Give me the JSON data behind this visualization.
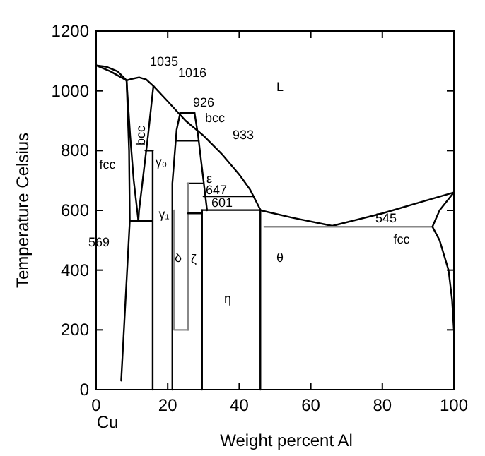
{
  "chart_data": {
    "type": "line",
    "xlabel": "Weight percent Al",
    "ylabel": "Temperature Celsius",
    "xlim": [
      0,
      100
    ],
    "ylim": [
      0,
      1200
    ],
    "xticks": [
      0,
      20,
      40,
      60,
      80,
      100
    ],
    "yticks": [
      0,
      200,
      400,
      600,
      800,
      1000,
      1200
    ],
    "grid": false,
    "line_style": "solid",
    "series": [
      {
        "color": "#000000",
        "x": [
          0,
          3,
          6,
          8.5,
          10,
          12,
          14,
          16,
          20,
          25,
          30,
          35,
          40,
          43,
          46,
          55,
          66,
          80,
          90,
          100
        ],
        "values": [
          1085,
          1080,
          1065,
          1035,
          1040,
          1045,
          1038,
          1016,
          965,
          900,
          850,
          790,
          720,
          670,
          600,
          575,
          548,
          590,
          625,
          660
        ]
      },
      {
        "color": "#000000",
        "x": [
          0,
          4,
          8.5
        ],
        "values": [
          1085,
          1065,
          1035
        ]
      },
      {
        "color": "#000000",
        "x": [
          8.5,
          9.2,
          9.4,
          7
        ],
        "values": [
          1035,
          800,
          565,
          30
        ]
      },
      {
        "color": "#000000",
        "x": [
          8.5,
          9.5,
          10.5,
          11.8
        ],
        "values": [
          1035,
          850,
          700,
          565
        ]
      },
      {
        "color": "#000000",
        "x": [
          16,
          14.5,
          13,
          12,
          11.8
        ],
        "values": [
          1016,
          850,
          700,
          600,
          565
        ]
      },
      {
        "color": "#000000",
        "x": [
          9.4,
          15.6
        ],
        "values": [
          565,
          565
        ]
      },
      {
        "color": "#000000",
        "x": [
          15.8,
          15.8
        ],
        "values": [
          0,
          800
        ]
      },
      {
        "color": "#000000",
        "x": [
          13.8,
          15.8
        ],
        "values": [
          800,
          800
        ]
      },
      {
        "color": "#000000",
        "x": [
          21.3,
          21.3,
          22.5,
          23.5
        ],
        "values": [
          0,
          690,
          870,
          926
        ]
      },
      {
        "color": "#000000",
        "x": [
          23.5,
          27.5
        ],
        "values": [
          926,
          926
        ]
      },
      {
        "color": "#000000",
        "x": [
          27.5,
          28.5,
          30,
          31
        ],
        "values": [
          926,
          850,
          700,
          600
        ]
      },
      {
        "color": "#000000",
        "x": [
          22.3,
          28.6
        ],
        "values": [
          833,
          833
        ]
      },
      {
        "color": "#000000",
        "x": [
          25.5,
          30
        ],
        "values": [
          690,
          690
        ]
      },
      {
        "color": "#888888",
        "x": [
          25.7,
          25.7
        ],
        "values": [
          200,
          690
        ]
      },
      {
        "color": "#000000",
        "x": [
          25.7,
          29.6
        ],
        "values": [
          590,
          590
        ]
      },
      {
        "color": "#000000",
        "x": [
          30,
          44
        ],
        "values": [
          647,
          647
        ]
      },
      {
        "color": "#000000",
        "x": [
          29.6,
          46
        ],
        "values": [
          601,
          601
        ]
      },
      {
        "color": "#000000",
        "x": [
          29.6,
          29.6
        ],
        "values": [
          0,
          601
        ]
      },
      {
        "color": "#888888",
        "x": [
          21.8,
          21.8,
          25.7
        ],
        "values": [
          600,
          200,
          200
        ]
      },
      {
        "color": "#000000",
        "x": [
          45.9,
          45.9
        ],
        "values": [
          0,
          601
        ]
      },
      {
        "color": "#888888",
        "x": [
          47,
          94
        ],
        "values": [
          545,
          545
        ]
      },
      {
        "color": "#000000",
        "x": [
          100,
          96,
          94,
          96,
          98.5,
          99.5,
          100
        ],
        "values": [
          660,
          600,
          545,
          500,
          400,
          300,
          200
        ]
      }
    ],
    "annotations": [
      "1035",
      "1016",
      "926",
      "bcc",
      "933",
      "L",
      "fcc",
      "bcc",
      "γ₀",
      "γ₁",
      "ε",
      "647",
      "601",
      "569",
      "δ",
      "ζ",
      "η",
      "θ",
      "545",
      "fcc",
      "Cu"
    ]
  }
}
